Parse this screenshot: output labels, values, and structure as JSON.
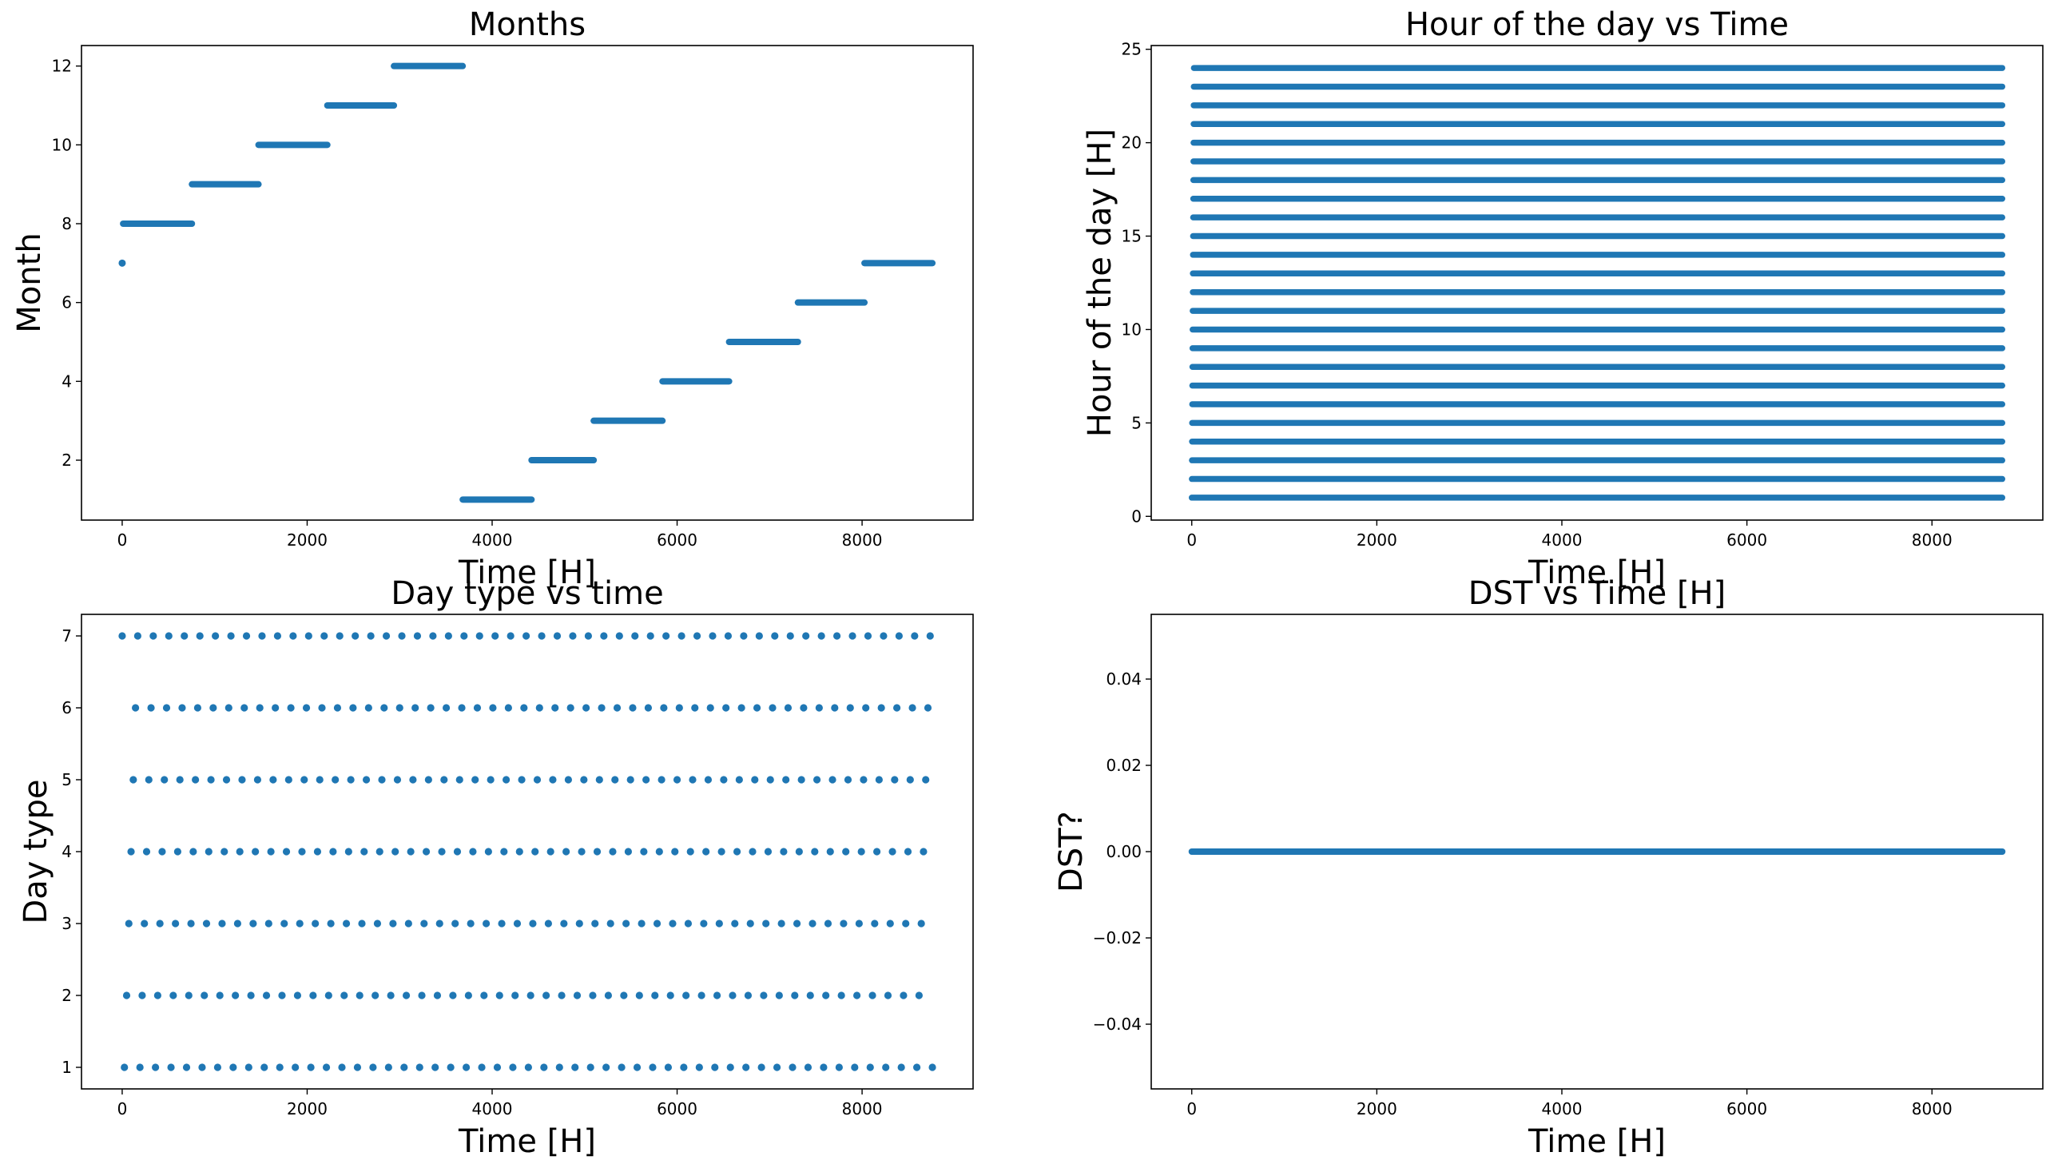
{
  "figure": {
    "series_color": "#1f77b4"
  },
  "chart_data": [
    {
      "id": "months",
      "type": "scatter",
      "title": "Months",
      "xlabel": "Time [H]",
      "ylabel": "Month",
      "xlim": [
        -440,
        9200
      ],
      "ylim": [
        0.48,
        12.52
      ],
      "xticks": [
        0,
        2000,
        4000,
        6000,
        8000
      ],
      "xtick_labels": [
        "0",
        "2000",
        "4000",
        "6000",
        "8000"
      ],
      "yticks": [
        2,
        4,
        6,
        8,
        10,
        12
      ],
      "ytick_labels": [
        "2",
        "4",
        "6",
        "8",
        "10",
        "12"
      ],
      "segments": [
        {
          "x": [
            0,
            10
          ],
          "y": 7
        },
        {
          "x": [
            10,
            754
          ],
          "y": 8
        },
        {
          "x": [
            754,
            1474
          ],
          "y": 9
        },
        {
          "x": [
            1474,
            2218
          ],
          "y": 10
        },
        {
          "x": [
            2218,
            2938
          ],
          "y": 11
        },
        {
          "x": [
            2938,
            3682
          ],
          "y": 12
        },
        {
          "x": [
            3682,
            4426
          ],
          "y": 1
        },
        {
          "x": [
            4426,
            5098
          ],
          "y": 2
        },
        {
          "x": [
            5098,
            5842
          ],
          "y": 3
        },
        {
          "x": [
            5842,
            6562
          ],
          "y": 4
        },
        {
          "x": [
            6562,
            7306
          ],
          "y": 5
        },
        {
          "x": [
            7306,
            8026
          ],
          "y": 6
        },
        {
          "x": [
            8026,
            8760
          ],
          "y": 7
        }
      ]
    },
    {
      "id": "hour",
      "type": "scatter",
      "title": "Hour of the day vs Time",
      "xlabel": "Time [H]",
      "ylabel": "Hour of the day [H]",
      "xlim": [
        -438,
        9198
      ],
      "ylim": [
        -0.2,
        25.2
      ],
      "xticks": [
        0,
        2000,
        4000,
        6000,
        8000
      ],
      "xtick_labels": [
        "0",
        "2000",
        "4000",
        "6000",
        "8000"
      ],
      "yticks": [
        0,
        5,
        10,
        15,
        20,
        25
      ],
      "ytick_labels": [
        "0",
        "5",
        "10",
        "15",
        "20",
        "25"
      ],
      "hours": [
        1,
        24
      ],
      "x_range": [
        0,
        8760
      ]
    },
    {
      "id": "daytype",
      "type": "scatter",
      "title": "Day type vs time",
      "xlabel": "Time [H]",
      "ylabel": "Day type",
      "xlim": [
        -440,
        9200
      ],
      "ylim": [
        0.7,
        7.3
      ],
      "xticks": [
        0,
        2000,
        4000,
        6000,
        8000
      ],
      "xtick_labels": [
        "0",
        "2000",
        "4000",
        "6000",
        "8000"
      ],
      "yticks": [
        1,
        2,
        3,
        4,
        5,
        6,
        7
      ],
      "ytick_labels": [
        "1",
        "2",
        "3",
        "4",
        "5",
        "6",
        "7"
      ],
      "day_types": [
        1,
        7
      ],
      "week_period_hours": 168,
      "first_day_type": 7,
      "x_range": [
        0,
        8760
      ]
    },
    {
      "id": "dst",
      "type": "scatter",
      "title": "DST vs Time [H]",
      "xlabel": "Time [H]",
      "ylabel": "DST?",
      "xlim": [
        -438,
        9198
      ],
      "ylim": [
        -0.055,
        0.055
      ],
      "xticks": [
        0,
        2000,
        4000,
        6000,
        8000
      ],
      "xtick_labels": [
        "0",
        "2000",
        "4000",
        "6000",
        "8000"
      ],
      "yticks": [
        -0.04,
        -0.02,
        0.0,
        0.02,
        0.04
      ],
      "ytick_labels": [
        "−0.04",
        "−0.02",
        "0.00",
        "0.02",
        "0.04"
      ],
      "segments": [
        {
          "x": [
            0,
            8760
          ],
          "y": 0
        }
      ]
    }
  ]
}
